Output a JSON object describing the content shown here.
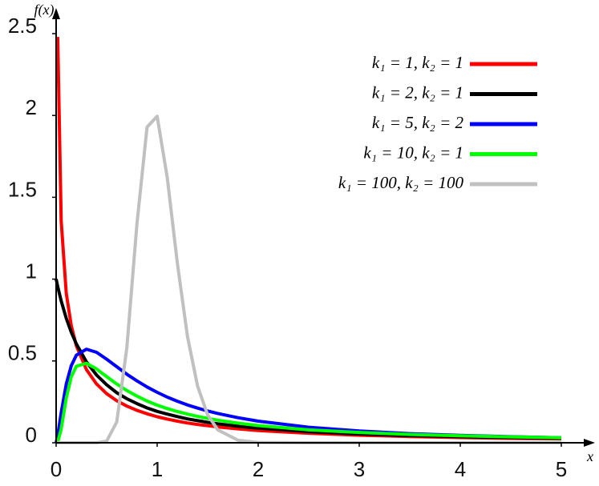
{
  "chart_data": {
    "type": "line",
    "x_label": "x",
    "y_label": "f(x)",
    "x": [
      0,
      0.016,
      0.05,
      0.1,
      0.15,
      0.2,
      0.3,
      0.4,
      0.5,
      0.6,
      0.7,
      0.8,
      0.9,
      1.0,
      1.1,
      1.2,
      1.3,
      1.4,
      1.5,
      1.6,
      1.8,
      2,
      2.5,
      3,
      3.5,
      4,
      4.5,
      5
    ],
    "series": [
      {
        "name": "k₁ = 1,  k₂ = 1",
        "color": "#ff0000",
        "values": [
          null,
          2.48,
          1.356,
          0.915,
          0.715,
          0.593,
          0.447,
          0.359,
          0.3,
          0.257,
          0.224,
          0.198,
          0.177,
          0.159,
          0.145,
          0.132,
          0.121,
          0.112,
          0.104,
          0.097,
          0.085,
          0.075,
          0.058,
          0.046,
          0.038,
          0.032,
          0.027,
          0.024
        ]
      },
      {
        "name": "k₁ = 2,  k₂ = 1",
        "color": "#000000",
        "values": [
          1,
          0.954,
          0.867,
          0.761,
          0.675,
          0.604,
          0.494,
          0.414,
          0.354,
          0.306,
          0.269,
          0.239,
          0.213,
          0.192,
          0.175,
          0.16,
          0.146,
          0.135,
          0.125,
          0.116,
          0.101,
          0.089,
          0.068,
          0.054,
          0.044,
          0.037,
          0.032,
          0.027
        ]
      },
      {
        "name": "k₁ = 5,  k₂ = 2",
        "color": "#0000ff",
        "values": [
          0,
          0.044,
          0.183,
          0.358,
          0.471,
          0.535,
          0.572,
          0.553,
          0.511,
          0.465,
          0.419,
          0.378,
          0.341,
          0.308,
          0.279,
          0.254,
          0.231,
          0.212,
          0.194,
          0.179,
          0.153,
          0.132,
          0.095,
          0.072,
          0.056,
          0.045,
          0.037,
          0.031
        ]
      },
      {
        "name": "k₁ = 10,  k₂ = 1",
        "color": "#00ff00",
        "values": [
          0,
          0.004,
          0.083,
          0.272,
          0.403,
          0.467,
          0.486,
          0.451,
          0.404,
          0.359,
          0.319,
          0.285,
          0.255,
          0.23,
          0.209,
          0.191,
          0.175,
          0.161,
          0.149,
          0.138,
          0.12,
          0.105,
          0.079,
          0.063,
          0.051,
          0.043,
          0.036,
          0.031
        ]
      },
      {
        "name": "k₁ = 100, k₂ = 100",
        "color": "#c0c0c0",
        "values": [
          0,
          0,
          0,
          0,
          0,
          0,
          0,
          0.0001,
          0.01,
          0.127,
          0.581,
          1.339,
          1.929,
          1.995,
          1.619,
          1.097,
          0.649,
          0.346,
          0.17,
          0.079,
          0.015,
          0.002,
          0,
          0,
          0,
          0,
          0,
          0
        ]
      }
    ],
    "xlim": [
      0,
      5
    ],
    "xticks": [
      0,
      1,
      2,
      3,
      4,
      5
    ],
    "ylim": [
      0,
      2.5
    ],
    "yticks": [
      0,
      0.5,
      1,
      1.5,
      2,
      2.5
    ],
    "grid": false,
    "legend": "upper right"
  }
}
